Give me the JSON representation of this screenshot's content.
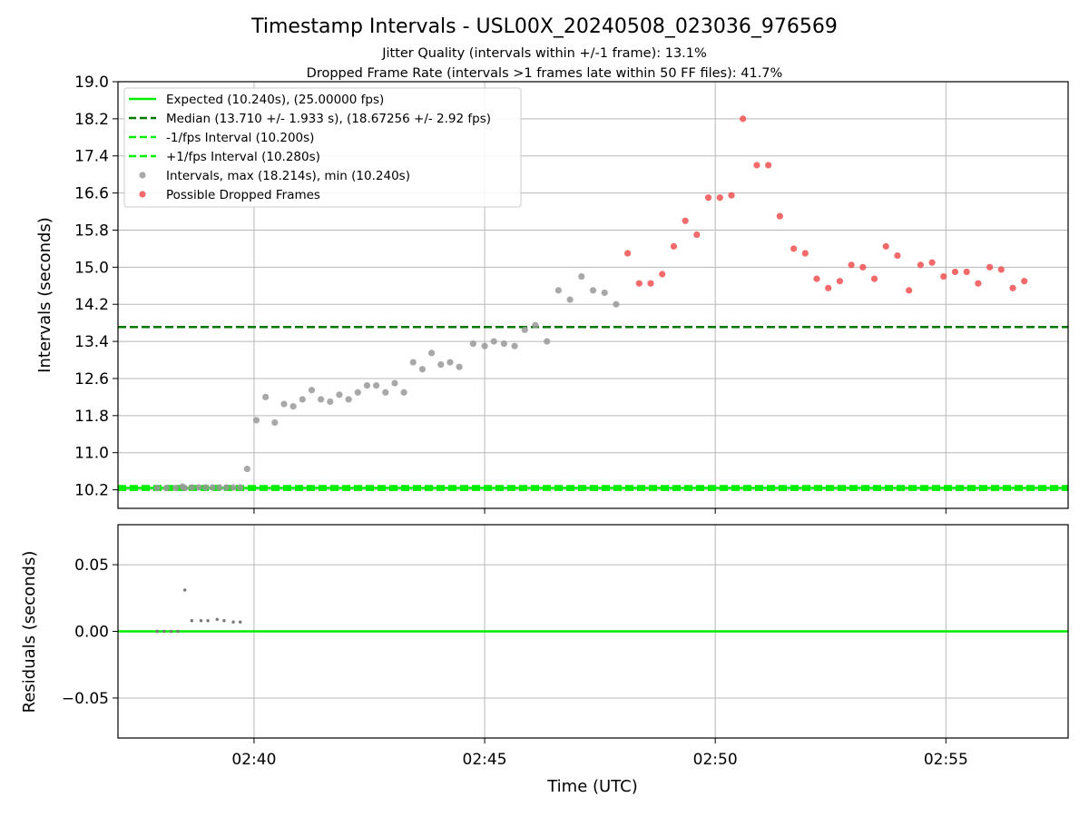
{
  "chart_data": [
    {
      "type": "scatter",
      "title": "Timestamp Intervals - USL00X_20240508_023036_976569",
      "subtitle_lines": [
        "Jitter Quality (intervals within +/-1 frame): 13.1%",
        "Dropped Frame Rate (intervals >1 frames late within 50 FF files): 41.7%"
      ],
      "xlabel": "",
      "ylabel": "Intervals (seconds)",
      "x_unit": "minutes after 02:00 UTC",
      "xlim": [
        37.05,
        57.65
      ],
      "ylim": [
        9.8,
        19.0
      ],
      "yticks": [
        10.2,
        11.0,
        11.8,
        12.6,
        13.4,
        14.2,
        15.0,
        15.8,
        16.6,
        17.4,
        18.2,
        19.0
      ],
      "ytick_labels": [
        "10.2",
        "11.0",
        "11.8",
        "12.6",
        "13.4",
        "14.2",
        "15.0",
        "15.8",
        "16.6",
        "17.4",
        "18.2",
        "19.0"
      ],
      "xticks": [
        40,
        45,
        50,
        55
      ],
      "grid": true,
      "legend_position": "upper-left",
      "legend": [
        {
          "label": "Expected (10.240s), (25.00000 fps)",
          "style": "solid",
          "color": "#00ee00"
        },
        {
          "label": "Median (13.710 +/- 1.933 s), (18.67256 +/- 2.92 fps)",
          "style": "dashed",
          "color": "#007700"
        },
        {
          "label": "-1/fps Interval (10.200s)",
          "style": "dashed",
          "color": "#00ee00"
        },
        {
          "label": "+1/fps Interval (10.280s)",
          "style": "dashed",
          "color": "#00ee00"
        },
        {
          "label": "Intervals, max (18.214s), min (10.240s)",
          "style": "marker",
          "color": "#999999"
        },
        {
          "label": "Possible Dropped Frames",
          "style": "marker",
          "color": "#f05050"
        }
      ],
      "hlines": [
        {
          "y": 10.24,
          "style": "solid",
          "color": "#00ee00"
        },
        {
          "y": 13.71,
          "style": "dashed",
          "color": "#007700"
        },
        {
          "y": 10.2,
          "style": "dashed",
          "color": "#00ee00"
        },
        {
          "y": 10.28,
          "style": "dashed",
          "color": "#00ee00"
        }
      ],
      "series": [
        {
          "name": "Intervals, max (18.214s), min (10.240s)",
          "color": "#999999",
          "x": [
            37.9,
            38.1,
            38.3,
            38.45,
            38.5,
            38.65,
            38.8,
            38.95,
            39.1,
            39.25,
            39.4,
            39.55,
            39.7,
            39.85,
            40.05,
            40.25,
            40.45,
            40.65,
            40.85,
            41.05,
            41.25,
            41.45,
            41.65,
            41.85,
            42.05,
            42.25,
            42.45,
            42.65,
            42.85,
            43.05,
            43.25,
            43.45,
            43.65,
            43.85,
            44.05,
            44.25,
            44.45,
            44.75,
            45.0,
            45.2,
            45.42,
            45.65,
            45.87,
            46.1,
            46.35,
            46.6,
            46.85,
            47.1,
            47.35,
            47.6,
            47.85
          ],
          "y": [
            10.24,
            10.24,
            10.24,
            10.27,
            10.24,
            10.25,
            10.25,
            10.25,
            10.25,
            10.25,
            10.25,
            10.25,
            10.25,
            10.65,
            11.7,
            12.2,
            11.65,
            12.05,
            12.0,
            12.15,
            12.35,
            12.15,
            12.1,
            12.25,
            12.15,
            12.3,
            12.45,
            12.45,
            12.3,
            12.5,
            12.3,
            12.95,
            12.8,
            13.15,
            12.9,
            12.95,
            12.85,
            13.35,
            13.3,
            13.4,
            13.35,
            13.3,
            13.65,
            13.75,
            13.4,
            14.5,
            14.3,
            14.8,
            14.5,
            14.45,
            14.2
          ]
        },
        {
          "name": "Possible Dropped Frames",
          "color": "#f05050",
          "x": [
            48.1,
            48.35,
            48.6,
            48.85,
            49.1,
            49.35,
            49.6,
            49.85,
            50.1,
            50.35,
            50.6,
            50.9,
            51.15,
            51.4,
            51.7,
            51.95,
            52.2,
            52.45,
            52.7,
            52.95,
            53.2,
            53.45,
            53.7,
            53.95,
            54.2,
            54.45,
            54.7,
            54.95,
            55.2,
            55.45,
            55.7,
            55.95,
            56.2,
            56.45,
            56.7
          ],
          "y": [
            15.3,
            14.65,
            14.65,
            14.85,
            15.45,
            16.0,
            15.7,
            16.5,
            16.5,
            16.55,
            18.2,
            17.2,
            17.2,
            16.1,
            15.4,
            15.3,
            14.75,
            14.55,
            14.7,
            15.05,
            15.0,
            14.75,
            15.45,
            15.25,
            14.5,
            15.05,
            15.1,
            14.8,
            14.9,
            14.9,
            14.65,
            15.0,
            14.95,
            14.55,
            14.7
          ]
        }
      ]
    },
    {
      "type": "scatter",
      "title": "",
      "xlabel": "Time (UTC)",
      "ylabel": "Residuals (seconds)",
      "x_unit": "minutes after 02:00 UTC",
      "xlim": [
        37.05,
        57.65
      ],
      "ylim": [
        -0.08,
        0.08
      ],
      "yticks": [
        0.05,
        0.0,
        -0.05
      ],
      "ytick_labels": [
        "0.05",
        "0.00",
        "−0.05"
      ],
      "xticks": [
        40,
        45,
        50,
        55
      ],
      "xtick_labels": [
        "02:40",
        "02:45",
        "02:50",
        "02:55"
      ],
      "grid": true,
      "hlines": [
        {
          "y": 0.0,
          "style": "solid",
          "color": "#00ee00"
        }
      ],
      "series": [
        {
          "name": "",
          "color": "#777777",
          "x": [
            37.9,
            38.05,
            38.2,
            38.35,
            38.5,
            38.65,
            38.85,
            39.0,
            39.2,
            39.35,
            39.55,
            39.7
          ],
          "y": [
            0.0,
            0.0,
            0.0,
            0.0,
            0.031,
            0.008,
            0.008,
            0.008,
            0.009,
            0.008,
            0.007,
            0.007
          ]
        }
      ]
    }
  ]
}
